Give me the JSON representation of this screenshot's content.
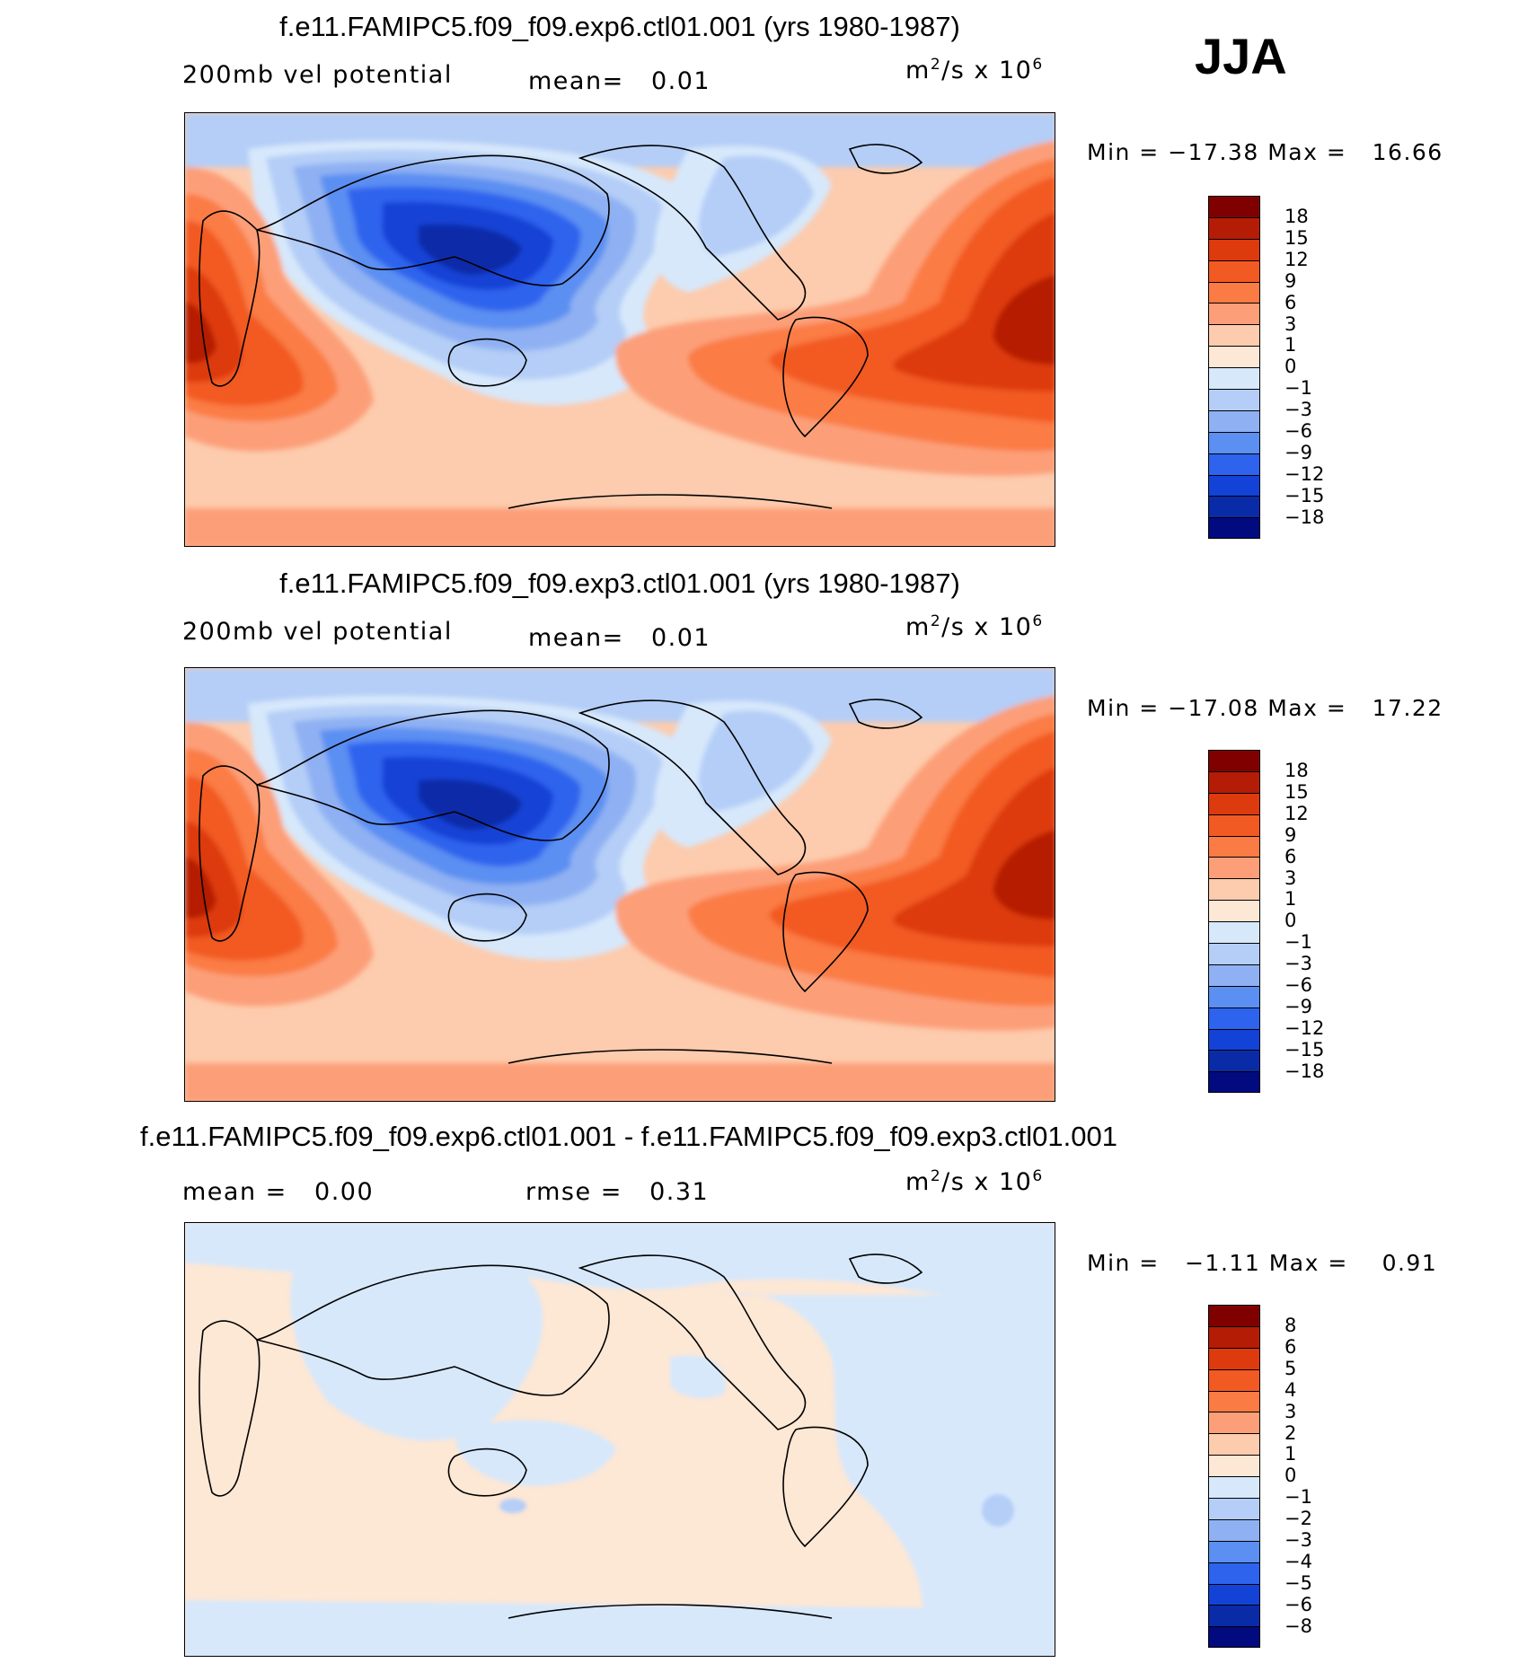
{
  "season": "JJA",
  "units_prefix": "m",
  "units_sup1": "2",
  "units_mid": "/s x 10",
  "units_sup2": "6",
  "chart_data": [
    {
      "type": "heatmap",
      "title": "f.e11.FAMIPC5.f09_f09.exp6.ctl01.001 (yrs 1980-1987)",
      "field": "200mb vel potential",
      "mean_label": "mean=",
      "mean": "0.01",
      "units": "m^2/s x 10^6",
      "min_label": "Min =",
      "min": "−17.38",
      "max_label": "Max =",
      "max": "16.66",
      "colorbar_levels": [
        "18",
        "15",
        "12",
        "9",
        "6",
        "3",
        "1",
        "0",
        "−1",
        "−3",
        "−6",
        "−9",
        "−12",
        "−15",
        "−18"
      ],
      "colorbar_colors": [
        "#800000",
        "#b51c06",
        "#dd3a0d",
        "#f25a23",
        "#fb7b45",
        "#fc9f78",
        "#fdcbad",
        "#fde7d5",
        "#d7e8fb",
        "#b4cef7",
        "#8fb1f3",
        "#5b8ff2",
        "#2e63ee",
        "#1343d6",
        "#0a2ba8",
        "#020a7f"
      ]
    },
    {
      "type": "heatmap",
      "title": "f.e11.FAMIPC5.f09_f09.exp3.ctl01.001 (yrs 1980-1987)",
      "field": "200mb vel potential",
      "mean_label": "mean=",
      "mean": "0.01",
      "units": "m^2/s x 10^6",
      "min_label": "Min =",
      "min": "−17.08",
      "max_label": "Max =",
      "max": "17.22",
      "colorbar_levels": [
        "18",
        "15",
        "12",
        "9",
        "6",
        "3",
        "1",
        "0",
        "−1",
        "−3",
        "−6",
        "−9",
        "−12",
        "−15",
        "−18"
      ],
      "colorbar_colors": [
        "#800000",
        "#b51c06",
        "#dd3a0d",
        "#f25a23",
        "#fb7b45",
        "#fc9f78",
        "#fdcbad",
        "#fde7d5",
        "#d7e8fb",
        "#b4cef7",
        "#8fb1f3",
        "#5b8ff2",
        "#2e63ee",
        "#1343d6",
        "#0a2ba8",
        "#020a7f"
      ]
    },
    {
      "type": "heatmap",
      "title": "f.e11.FAMIPC5.f09_f09.exp6.ctl01.001 - f.e11.FAMIPC5.f09_f09.exp3.ctl01.001",
      "mean_label": "mean =",
      "mean": "0.00",
      "rmse_label": "rmse =",
      "rmse": "0.31",
      "units": "m^2/s x 10^6",
      "min_label": "Min =",
      "min": "−1.11",
      "max_label": "Max =",
      "max": "0.91",
      "colorbar_levels": [
        "8",
        "6",
        "5",
        "4",
        "3",
        "2",
        "1",
        "0",
        "−1",
        "−2",
        "−3",
        "−4",
        "−5",
        "−6",
        "−8"
      ],
      "colorbar_colors": [
        "#800000",
        "#b51c06",
        "#dd3a0d",
        "#f25a23",
        "#fb7b45",
        "#fc9f78",
        "#fdcbad",
        "#fde7d5",
        "#d7e8fb",
        "#b4cef7",
        "#8fb1f3",
        "#5b8ff2",
        "#2e63ee",
        "#1343d6",
        "#0a2ba8",
        "#020a7f"
      ]
    }
  ]
}
